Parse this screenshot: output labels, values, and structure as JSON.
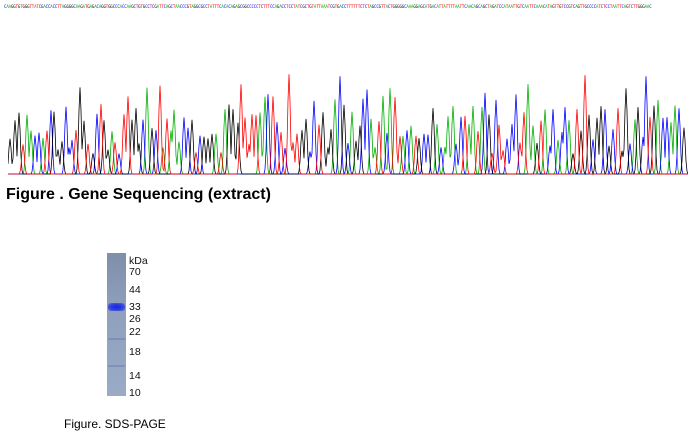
{
  "sequence_figure": {
    "caption": "Figure . Gene Sequencing (extract)",
    "trace_colors": {
      "A": "#00b000",
      "C": "#0000ff",
      "G": "#000000",
      "T": "#ff0000"
    }
  },
  "gel_figure": {
    "caption": "Figure. SDS-PAGE",
    "unit": "kDa",
    "markers": [
      "70",
      "44",
      "33",
      "26",
      "22",
      "18",
      "14",
      "10"
    ],
    "band_color": "#1a2ad8"
  }
}
